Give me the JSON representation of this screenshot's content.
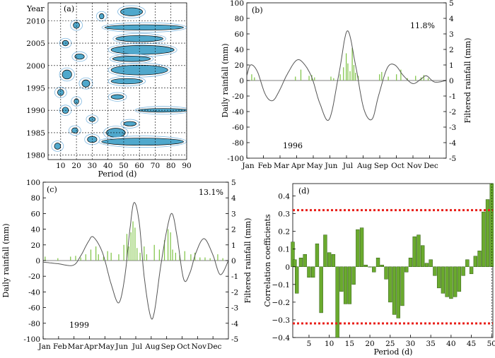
{
  "chart_data": [
    {
      "panel_tag": "(a)",
      "type": "heatmap",
      "xlabel": "Period (d)",
      "ylabel": "Year",
      "xlim": [
        2,
        90
      ],
      "ylim": [
        1979,
        2014
      ],
      "x_ticks": [
        10,
        20,
        30,
        40,
        50,
        60,
        70,
        80,
        90
      ],
      "y_ticks": [
        1980,
        1985,
        1990,
        1995,
        2000,
        2005,
        2010
      ],
      "fill_color": "#4fa8cc",
      "line_color": "#7fb8e0",
      "blobs": [
        {
          "cx": 55,
          "cy": 2012,
          "rx": 7,
          "ry": 0.9
        },
        {
          "cx": 63,
          "cy": 2008.5,
          "rx": 25,
          "ry": 0.6
        },
        {
          "cx": 60,
          "cy": 2006,
          "rx": 15,
          "ry": 0.7
        },
        {
          "cx": 62,
          "cy": 2003.5,
          "rx": 20,
          "ry": 1.0
        },
        {
          "cx": 55,
          "cy": 2001.5,
          "rx": 12,
          "ry": 0.6
        },
        {
          "cx": 60,
          "cy": 1999,
          "rx": 18,
          "ry": 1.1
        },
        {
          "cx": 52,
          "cy": 1996.5,
          "rx": 10,
          "ry": 0.6
        },
        {
          "cx": 46,
          "cy": 1993,
          "rx": 4,
          "ry": 0.5
        },
        {
          "cx": 75,
          "cy": 1990,
          "rx": 16,
          "ry": 0.4
        },
        {
          "cx": 45,
          "cy": 1985,
          "rx": 6,
          "ry": 1.0
        },
        {
          "cx": 62,
          "cy": 1983,
          "rx": 26,
          "ry": 0.8
        },
        {
          "cx": 54,
          "cy": 1987,
          "rx": 4,
          "ry": 0.5
        },
        {
          "cx": 20,
          "cy": 2009,
          "rx": 2,
          "ry": 0.7
        },
        {
          "cx": 13,
          "cy": 2005,
          "rx": 2,
          "ry": 0.6
        },
        {
          "cx": 22,
          "cy": 2002,
          "rx": 3,
          "ry": 0.6
        },
        {
          "cx": 14,
          "cy": 1998,
          "rx": 3,
          "ry": 1.0
        },
        {
          "cx": 26,
          "cy": 1996,
          "rx": 2.5,
          "ry": 0.8
        },
        {
          "cx": 10,
          "cy": 1994,
          "rx": 2,
          "ry": 0.7
        },
        {
          "cx": 20,
          "cy": 1992,
          "rx": 1.5,
          "ry": 0.6
        },
        {
          "cx": 13,
          "cy": 1990,
          "rx": 2,
          "ry": 0.7
        },
        {
          "cx": 30,
          "cy": 1988,
          "rx": 2,
          "ry": 0.5
        },
        {
          "cx": 19,
          "cy": 1985.5,
          "rx": 2,
          "ry": 0.6
        },
        {
          "cx": 30,
          "cy": 1983.5,
          "rx": 3,
          "ry": 0.7
        },
        {
          "cx": 8,
          "cy": 1982,
          "rx": 2,
          "ry": 0.7
        },
        {
          "cx": 36,
          "cy": 2011,
          "rx": 1.5,
          "ry": 0.6
        }
      ]
    },
    {
      "panel_tag": "(b)",
      "type": "bar",
      "year_label": "1996",
      "percent_label": "11.8%",
      "ylabel": "Daily rainfall (mm)",
      "ylabel_right": "Filtered rainfall (mm)",
      "ylim": [
        -100,
        100
      ],
      "y_ticks": [
        -100,
        -80,
        -60,
        -40,
        -20,
        0,
        20,
        40,
        60,
        80,
        100
      ],
      "ylim_right": [
        -5,
        5
      ],
      "y_ticks_right": [
        -5,
        -4,
        -3,
        -2,
        -1,
        0,
        1,
        2,
        3,
        4,
        5
      ],
      "x_ticks": [
        "Jan",
        "Feb",
        "Mar",
        "Apr",
        "May",
        "Jun",
        "Jul",
        "Aug",
        "Sep",
        "Oct",
        "Nov",
        "Dec"
      ],
      "bar_color": "#7cc242",
      "line_color": "#555555",
      "filtered_knots": [
        [
          1,
          0.3
        ],
        [
          8,
          1.0
        ],
        [
          20,
          0.6
        ],
        [
          35,
          -0.9
        ],
        [
          48,
          -1.3
        ],
        [
          60,
          -0.7
        ],
        [
          75,
          0.4
        ],
        [
          92,
          1.3
        ],
        [
          105,
          1.1
        ],
        [
          120,
          0.2
        ],
        [
          135,
          -1.5
        ],
        [
          152,
          -2.5
        ],
        [
          170,
          0.5
        ],
        [
          185,
          3.2
        ],
        [
          200,
          1.0
        ],
        [
          215,
          -1.8
        ],
        [
          230,
          -2.5
        ],
        [
          242,
          -1.0
        ],
        [
          258,
          0.8
        ],
        [
          272,
          1.0
        ],
        [
          288,
          0.3
        ],
        [
          305,
          -0.2
        ],
        [
          320,
          0.1
        ],
        [
          330,
          0.3
        ],
        [
          345,
          -0.1
        ],
        [
          366,
          0.0
        ]
      ],
      "rain": [
        [
          10,
          8
        ],
        [
          15,
          4
        ],
        [
          90,
          5
        ],
        [
          100,
          14
        ],
        [
          115,
          6
        ],
        [
          120,
          7
        ],
        [
          125,
          4
        ],
        [
          155,
          5
        ],
        [
          160,
          3
        ],
        [
          172,
          8
        ],
        [
          178,
          17
        ],
        [
          183,
          35
        ],
        [
          186,
          22
        ],
        [
          190,
          12
        ],
        [
          194,
          42
        ],
        [
          197,
          20
        ],
        [
          200,
          10
        ],
        [
          205,
          6
        ],
        [
          244,
          8
        ],
        [
          248,
          11
        ],
        [
          260,
          5
        ],
        [
          275,
          8
        ],
        [
          283,
          14
        ],
        [
          295,
          3
        ],
        [
          310,
          6
        ],
        [
          320,
          4
        ],
        [
          325,
          7
        ],
        [
          333,
          3
        ]
      ]
    },
    {
      "panel_tag": "(c)",
      "type": "bar",
      "year_label": "1999",
      "percent_label": "13.1%",
      "ylabel": "Daily rainfall (mm)",
      "ylabel_right": "Filtered rainfall (mm)",
      "ylim": [
        -100,
        100
      ],
      "y_ticks": [
        -100,
        -80,
        -60,
        -40,
        -20,
        0,
        20,
        40,
        60,
        80,
        100
      ],
      "ylim_right": [
        -5,
        5
      ],
      "y_ticks_right": [
        -5,
        -4,
        -3,
        -2,
        -1,
        0,
        1,
        2,
        3,
        4,
        5
      ],
      "x_ticks": [
        "Jan",
        "Feb",
        "Mar",
        "Apr",
        "May",
        "Jun",
        "Jul",
        "Aug",
        "Sep",
        "Oct",
        "Nov",
        "Dec"
      ],
      "bar_color": "#7cc242",
      "line_color": "#555555",
      "filtered_knots": [
        [
          1,
          -0.1
        ],
        [
          30,
          -0.2
        ],
        [
          60,
          -0.3
        ],
        [
          75,
          0.3
        ],
        [
          90,
          1.2
        ],
        [
          100,
          1.5
        ],
        [
          118,
          0.5
        ],
        [
          135,
          -1.5
        ],
        [
          150,
          -2.7
        ],
        [
          162,
          -1.0
        ],
        [
          172,
          2.0
        ],
        [
          180,
          3.7
        ],
        [
          190,
          2.5
        ],
        [
          200,
          -1.0
        ],
        [
          212,
          -3.5
        ],
        [
          220,
          -3.3
        ],
        [
          232,
          -0.5
        ],
        [
          245,
          2.0
        ],
        [
          255,
          3.0
        ],
        [
          265,
          1.5
        ],
        [
          278,
          -1.2
        ],
        [
          290,
          -0.8
        ],
        [
          302,
          0.5
        ],
        [
          318,
          1.4
        ],
        [
          335,
          0.4
        ],
        [
          350,
          -0.9
        ],
        [
          366,
          0.0
        ]
      ],
      "rain": [
        [
          5,
          5
        ],
        [
          30,
          3
        ],
        [
          55,
          5
        ],
        [
          65,
          6
        ],
        [
          75,
          4
        ],
        [
          85,
          8
        ],
        [
          95,
          14
        ],
        [
          105,
          18
        ],
        [
          110,
          8
        ],
        [
          120,
          5
        ],
        [
          128,
          12
        ],
        [
          135,
          10
        ],
        [
          150,
          8
        ],
        [
          160,
          20
        ],
        [
          166,
          34
        ],
        [
          170,
          18
        ],
        [
          174,
          36
        ],
        [
          178,
          50
        ],
        [
          182,
          42
        ],
        [
          186,
          16
        ],
        [
          192,
          10
        ],
        [
          200,
          18
        ],
        [
          205,
          8
        ],
        [
          220,
          20
        ],
        [
          230,
          14
        ],
        [
          240,
          26
        ],
        [
          247,
          40
        ],
        [
          252,
          36
        ],
        [
          256,
          14
        ],
        [
          262,
          10
        ],
        [
          270,
          7
        ],
        [
          280,
          12
        ],
        [
          292,
          8
        ],
        [
          300,
          10
        ],
        [
          310,
          4
        ],
        [
          320,
          4
        ],
        [
          330,
          3
        ],
        [
          345,
          8
        ],
        [
          355,
          3
        ]
      ]
    },
    {
      "panel_tag": "(d)",
      "type": "bar",
      "xlabel": "Period (d)",
      "ylabel": "Correlation coefficients",
      "xlim": [
        1,
        50.3
      ],
      "ylim": [
        -0.4,
        0.47
      ],
      "x_ticks": [
        5,
        10,
        15,
        20,
        25,
        30,
        35,
        40,
        45,
        50
      ],
      "y_ticks": [
        -0.4,
        -0.3,
        -0.2,
        -0.1,
        0,
        0.1,
        0.2,
        0.3,
        0.4
      ],
      "y_tick_labels": [
        "−0.4",
        "−0.3",
        "−0.2",
        "−0.1",
        "0",
        "0.1",
        "0.2",
        "0.3",
        "0.4"
      ],
      "significance": [
        0.32,
        -0.32
      ],
      "bar_color": "#6aaa2e",
      "dot_color": "#e8201a",
      "x": [
        1,
        1.5,
        2,
        3,
        4,
        5,
        6,
        7,
        8,
        9,
        10,
        11,
        12,
        13,
        14,
        15,
        16,
        17,
        18,
        19,
        20,
        21,
        22,
        23,
        24,
        25,
        26,
        27,
        28,
        29,
        30,
        31,
        32,
        33,
        34,
        35,
        36,
        37,
        38,
        39,
        40,
        41,
        42,
        43,
        44,
        45,
        46,
        47,
        48,
        49,
        50
      ],
      "values": [
        0.14,
        0.04,
        -0.15,
        0.05,
        0.07,
        -0.06,
        -0.06,
        0.13,
        -0.26,
        0.18,
        0.08,
        0.07,
        -0.4,
        -0.14,
        -0.21,
        -0.21,
        -0.1,
        0.21,
        0.22,
        0.01,
        0.0,
        -0.03,
        0.05,
        0.01,
        -0.07,
        -0.2,
        -0.27,
        -0.29,
        -0.22,
        -0.03,
        0.05,
        0.17,
        0.18,
        0.12,
        0.02,
        0.04,
        -0.05,
        -0.12,
        -0.15,
        -0.17,
        -0.18,
        -0.17,
        -0.14,
        -0.05,
        0.04,
        -0.04,
        0.06,
        0.09,
        0.31,
        0.38,
        0.47
      ]
    }
  ]
}
